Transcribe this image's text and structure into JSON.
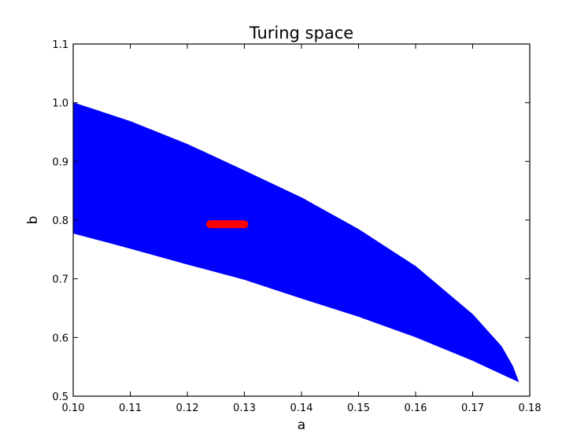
{
  "chart_data": {
    "type": "area",
    "title": "Turing space",
    "xlabel": "a",
    "ylabel": "b",
    "xlim": [
      0.1,
      0.18
    ],
    "ylim": [
      0.5,
      1.1
    ],
    "x_ticks": [
      "0.10",
      "0.11",
      "0.12",
      "0.13",
      "0.14",
      "0.15",
      "0.16",
      "0.17",
      "0.18"
    ],
    "y_ticks": [
      "0.5",
      "0.6",
      "0.7",
      "0.8",
      "0.9",
      "1.0",
      "1.1"
    ],
    "grid": false,
    "series": [
      {
        "type": "area",
        "color": "#0000ff",
        "upper": [
          [
            0.1,
            1.0
          ],
          [
            0.11,
            0.968
          ],
          [
            0.12,
            0.929
          ],
          [
            0.13,
            0.884
          ],
          [
            0.14,
            0.838
          ],
          [
            0.15,
            0.784
          ],
          [
            0.16,
            0.721
          ],
          [
            0.17,
            0.639
          ],
          [
            0.175,
            0.585
          ],
          [
            0.177,
            0.551
          ],
          [
            0.178,
            0.525
          ]
        ],
        "lower": [
          [
            0.178,
            0.525
          ],
          [
            0.176,
            0.534
          ],
          [
            0.17,
            0.561
          ],
          [
            0.16,
            0.601
          ],
          [
            0.15,
            0.636
          ],
          [
            0.14,
            0.667
          ],
          [
            0.13,
            0.699
          ],
          [
            0.12,
            0.725
          ],
          [
            0.11,
            0.752
          ],
          [
            0.1,
            0.778
          ]
        ]
      },
      {
        "type": "segment",
        "color": "#ff0000",
        "points": [
          [
            0.124,
            0.793
          ],
          [
            0.13,
            0.793
          ]
        ]
      }
    ]
  }
}
